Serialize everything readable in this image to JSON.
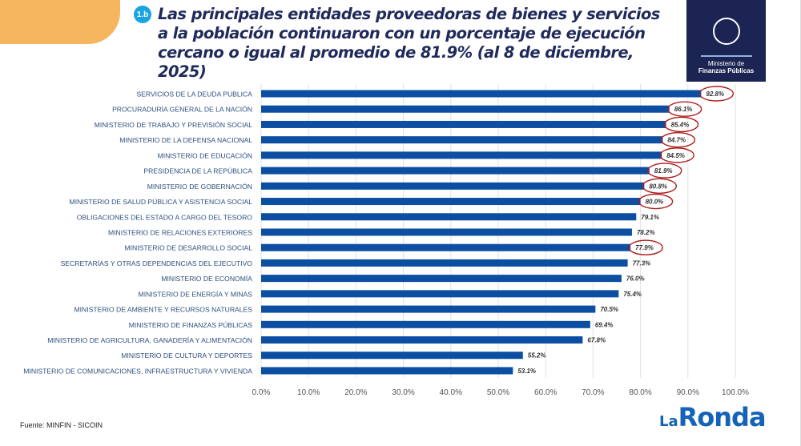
{
  "header": {
    "badge": "1.b",
    "title": "Las principales entidades proveedoras de bienes y servicios a la población continuaron con un porcentaje de ejecución cercano o igual al promedio de 81.9% (al 8 de diciembre, 2025)"
  },
  "logo": {
    "line1": "Ministerio de",
    "line2": "Finanzas Públicas"
  },
  "footer": {
    "source": "Fuente: MINFIN - SICOIN",
    "brand_la": "La",
    "brand_ronda": "Ronda"
  },
  "colors": {
    "bar": "#0b4ea2",
    "highlight": "#b01c1c",
    "brand": "#1463b8"
  },
  "chart_data": {
    "type": "bar",
    "orientation": "horizontal",
    "categories": [
      "SERVICIOS DE LA DEUDA PUBLICA",
      "PROCURADURÍA GENERAL DE LA NACIÓN",
      "MINISTERIO DE TRABAJO Y PREVISIÓN SOCIAL",
      "MINISTERIO DE LA DEFENSA NACIONAL",
      "MINISTERIO DE EDUCACIÓN",
      "PRESIDENCIA DE LA REPÚBLICA",
      "MINISTERIO DE GOBERNACIÓN",
      "MINISTERIO DE SALUD PÚBLICA Y ASISTENCIA SOCIAL",
      "OBLIGACIONES DEL ESTADO A CARGO DEL TESORO",
      "MINISTERIO DE RELACIONES EXTERIORES",
      "MINISTERIO DE DESARROLLO SOCIAL",
      "SECRETARÍAS Y OTRAS DEPENDENCIAS DEL EJECUTIVO",
      "MINISTERIO DE ECONOMÍA",
      "MINISTERIO DE ENERGÍA Y MINAS",
      "MINISTERIO DE AMBIENTE Y RECURSOS NATURALES",
      "MINISTERIO DE FINANZAS PÚBLICAS",
      "MINISTERIO DE AGRICULTURA, GANADERÍA Y ALIMENTACIÓN",
      "MINISTERIO DE CULTURA Y DEPORTES",
      "MINISTERIO DE  COMUNICACIONES, INFRAESTRUCTURA Y VIVIENDA"
    ],
    "values": [
      92.8,
      86.1,
      85.4,
      84.7,
      84.5,
      81.9,
      80.8,
      80.0,
      79.1,
      78.2,
      77.9,
      77.3,
      76.0,
      75.4,
      70.5,
      69.4,
      67.8,
      55.2,
      53.1
    ],
    "data_labels": [
      "92.8%",
      "86.1%",
      "85.4%",
      "84.7%",
      "84.5%",
      "81.9%",
      "80.8%",
      "80.0%",
      "79.1%",
      "78.2%",
      "77.9%",
      "77.3%",
      "76.0%",
      "75.4%",
      "70.5%",
      "69.4%",
      "67.8%",
      "55.2%",
      "53.1%"
    ],
    "highlighted": [
      true,
      true,
      true,
      true,
      true,
      true,
      true,
      true,
      false,
      false,
      true,
      false,
      false,
      false,
      false,
      false,
      false,
      false,
      false
    ],
    "xlim": [
      0,
      100
    ],
    "xticks": [
      "0.0%",
      "10.0%",
      "20.0%",
      "30.0%",
      "40.0%",
      "50.0%",
      "60.0%",
      "70.0%",
      "80.0%",
      "90.0%",
      "100.0%"
    ],
    "grid": "vertical",
    "legend": "none"
  }
}
